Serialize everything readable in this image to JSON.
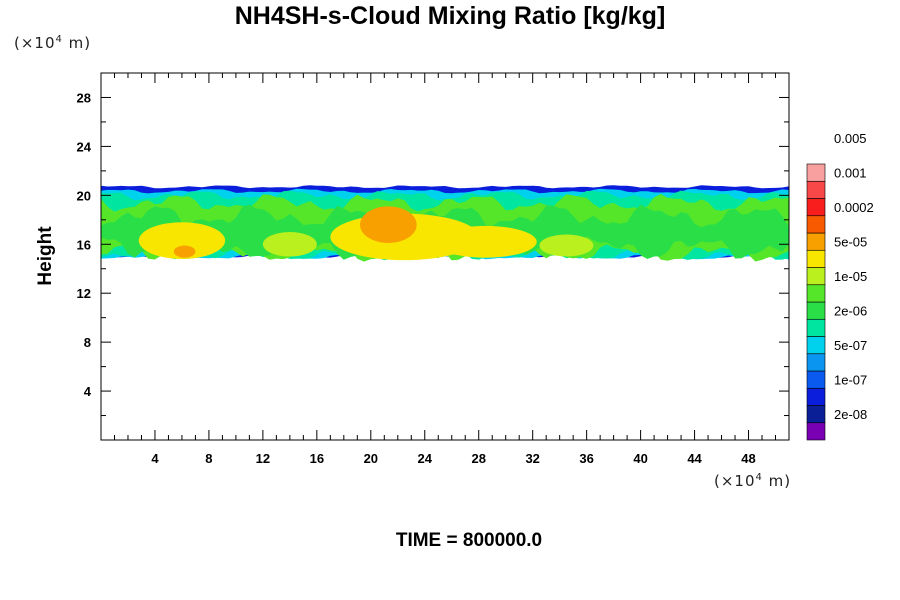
{
  "chart_data": {
    "type": "heatmap",
    "title": "NH4SH-s-Cloud Mixing Ratio [kg/kg]",
    "ylabel": "Height",
    "y_unit_prefix": "(×10",
    "y_unit_exp": "4",
    "y_unit_suffix": " m)",
    "x_unit_prefix": "(×10",
    "x_unit_exp": "4",
    "x_unit_suffix": " m)",
    "x_range": [
      0,
      51
    ],
    "y_range": [
      0,
      30
    ],
    "x_ticks": [
      4,
      8,
      12,
      16,
      20,
      24,
      28,
      32,
      36,
      40,
      44,
      48
    ],
    "y_ticks": [
      4,
      8,
      12,
      16,
      20,
      24,
      28
    ],
    "cloud_layer": {
      "bottom": 15,
      "top": 20.7
    },
    "colorbar": {
      "colors": [
        "#7a00b4",
        "#0a1e96",
        "#0a1edc",
        "#0a5af0",
        "#0a96f0",
        "#00d2ee",
        "#00e6a0",
        "#2ade48",
        "#55e62a",
        "#b9f01e",
        "#f8e600",
        "#f8a000",
        "#f85a00",
        "#f81e1e",
        "#f84848",
        "#f8a0a0"
      ],
      "labels": [
        "2e-08",
        "1e-07",
        "5e-07",
        "2e-06",
        "1e-05",
        "5e-05",
        "0.0002",
        "0.001",
        "0.005"
      ]
    },
    "footer": "TIME = 800000.0"
  }
}
